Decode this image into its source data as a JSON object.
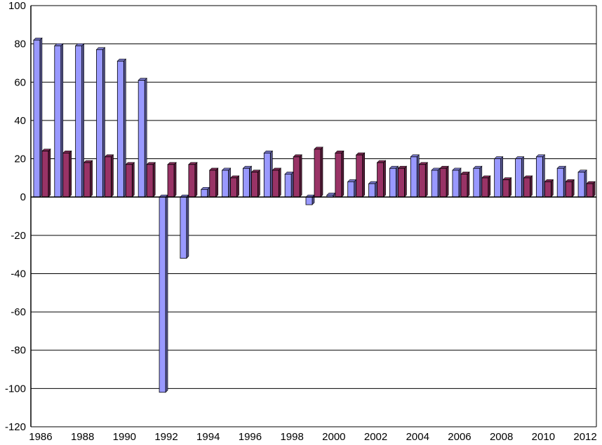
{
  "chart_data": {
    "type": "bar",
    "title": "",
    "xlabel": "",
    "ylabel": "",
    "ylim": [
      -120,
      100
    ],
    "yticks": [
      -120,
      -100,
      -80,
      -60,
      -40,
      -20,
      0,
      20,
      40,
      60,
      80,
      100
    ],
    "grid": "horizontal",
    "legend": "none",
    "categories": [
      "1986",
      "1987",
      "1988",
      "1989",
      "1990",
      "1991",
      "1992",
      "1993",
      "1994",
      "1995",
      "1996",
      "1997",
      "1998",
      "1999",
      "2000",
      "2001",
      "2002",
      "2003",
      "2004",
      "2005",
      "2006",
      "2007",
      "2008",
      "2009",
      "2010",
      "2011",
      "2012"
    ],
    "xtick_labels": [
      "1986",
      "",
      "1988",
      "",
      "1990",
      "",
      "1992",
      "",
      "1994",
      "",
      "1996",
      "",
      "1998",
      "",
      "2000",
      "",
      "2002",
      "",
      "2004",
      "",
      "2006",
      "",
      "2008",
      "",
      "2010",
      "",
      "2012"
    ],
    "series": [
      {
        "color": "#9999ff",
        "values": [
          82,
          79,
          79,
          77,
          71,
          61,
          -102,
          -32,
          4,
          14,
          15,
          23,
          12,
          -4,
          1,
          8,
          7,
          15,
          21,
          14,
          14,
          15,
          20,
          20,
          21,
          15,
          13
        ]
      },
      {
        "color": "#993366",
        "values": [
          24,
          23,
          18,
          21,
          17,
          17,
          17,
          17,
          14,
          10,
          13,
          14,
          21,
          25,
          23,
          22,
          18,
          15,
          17,
          15,
          12,
          10,
          9,
          10,
          8,
          8,
          7
        ]
      }
    ]
  }
}
